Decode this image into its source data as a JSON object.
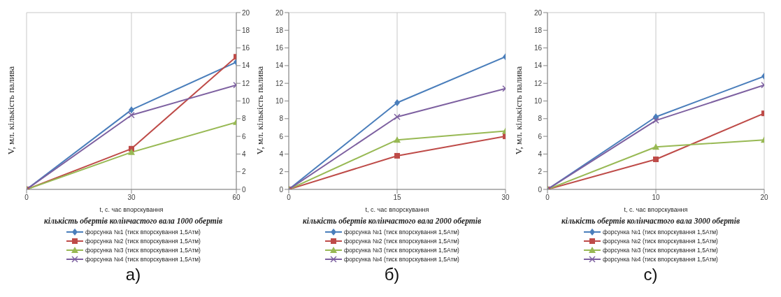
{
  "chart_data": [
    {
      "type": "line",
      "title": "кількість обертів колінчастого вала 1000 обертів",
      "xlabel": "t, с. час впорскування",
      "ylabel": "V, мл. кількість палива",
      "x": [
        0,
        30,
        60
      ],
      "xlim": [
        0,
        60
      ],
      "xticks": [
        0,
        30,
        60
      ],
      "y2lim": [
        0,
        20
      ],
      "y2ticks": [
        0,
        2,
        4,
        6,
        8,
        10,
        12,
        14,
        16,
        18,
        20
      ],
      "grid": true,
      "legend": "bottom",
      "annotations": [
        "а)"
      ],
      "series": [
        {
          "name": "форсунка №1 (тиск впорскування 1,5Атм)",
          "color": "#4a7ebb",
          "marker": "diamond",
          "axis": "y2",
          "values": [
            0,
            9,
            14.4
          ]
        },
        {
          "name": "форсунка №2 (тиск впорскування 1,5Атм)",
          "color": "#be4b48",
          "marker": "square",
          "axis": "y2",
          "values": [
            0,
            4.6,
            15
          ]
        },
        {
          "name": "форсунка №3 (тиск впорскування 1,5Атм)",
          "color": "#98b954",
          "marker": "triangle",
          "axis": "y2",
          "values": [
            0,
            4.2,
            7.6
          ]
        },
        {
          "name": "форсунка №4 (тиск впорскування 1,5Атм)",
          "color": "#7d60a0",
          "marker": "cross",
          "axis": "y2",
          "values": [
            0,
            8.4,
            11.8
          ]
        }
      ]
    },
    {
      "type": "line",
      "title": "кількість обертів колінчастого вала 2000 обертів",
      "xlabel": "t, с. час впорскування",
      "ylabel": "V, мл. кількість палива",
      "x": [
        0,
        15,
        30
      ],
      "xlim": [
        0,
        30
      ],
      "xticks": [
        0,
        15,
        30
      ],
      "ylim": [
        0,
        20
      ],
      "yticks": [
        0,
        2,
        4,
        6,
        8,
        10,
        12,
        14,
        16,
        18,
        20
      ],
      "grid": true,
      "legend": "bottom",
      "annotations": [
        "б)"
      ],
      "series": [
        {
          "name": "форсунка №1 (тиск впорскування 1,5Атм)",
          "color": "#4a7ebb",
          "marker": "diamond",
          "values": [
            0,
            9.8,
            15
          ]
        },
        {
          "name": "форсунка №2 (тиск впорскування 1,5Атм)",
          "color": "#be4b48",
          "marker": "square",
          "values": [
            0,
            3.8,
            6
          ]
        },
        {
          "name": "форсунка №3 (тиск впорскування 1,5Атм)",
          "color": "#98b954",
          "marker": "triangle",
          "values": [
            0,
            5.6,
            6.6
          ]
        },
        {
          "name": "форсунка №4 (тиск впорскування 1,5Атм)",
          "color": "#7d60a0",
          "marker": "cross",
          "values": [
            0,
            8.2,
            11.4
          ]
        }
      ]
    },
    {
      "type": "line",
      "title": "кількість обертів колінчастого вала 3000 обертів",
      "xlabel": "t, с. час впорскування",
      "ylabel": "V, мл. кількість палива",
      "x": [
        0,
        10,
        20
      ],
      "xlim": [
        0,
        20
      ],
      "xticks": [
        0,
        10,
        20
      ],
      "ylim": [
        0,
        20
      ],
      "yticks": [
        0,
        2,
        4,
        6,
        8,
        10,
        12,
        14,
        16,
        18,
        20
      ],
      "grid": true,
      "legend": "bottom",
      "annotations": [
        "с)"
      ],
      "series": [
        {
          "name": "форсунка №1 (тиск впорскування 1,5Атм)",
          "color": "#4a7ebb",
          "marker": "diamond",
          "values": [
            0,
            8.2,
            12.8
          ]
        },
        {
          "name": "форсунка №2 (тиск впорскування 1,5Атм)",
          "color": "#be4b48",
          "marker": "square",
          "values": [
            0,
            3.4,
            8.6
          ]
        },
        {
          "name": "форсунка №3 (тиск впорскування 1,5Атм)",
          "color": "#98b954",
          "marker": "triangle",
          "values": [
            0,
            4.8,
            5.6
          ]
        },
        {
          "name": "форсунка №4 (тиск впорскування 1,5Атм)",
          "color": "#7d60a0",
          "marker": "cross",
          "values": [
            0,
            7.8,
            11.8
          ]
        }
      ]
    }
  ]
}
